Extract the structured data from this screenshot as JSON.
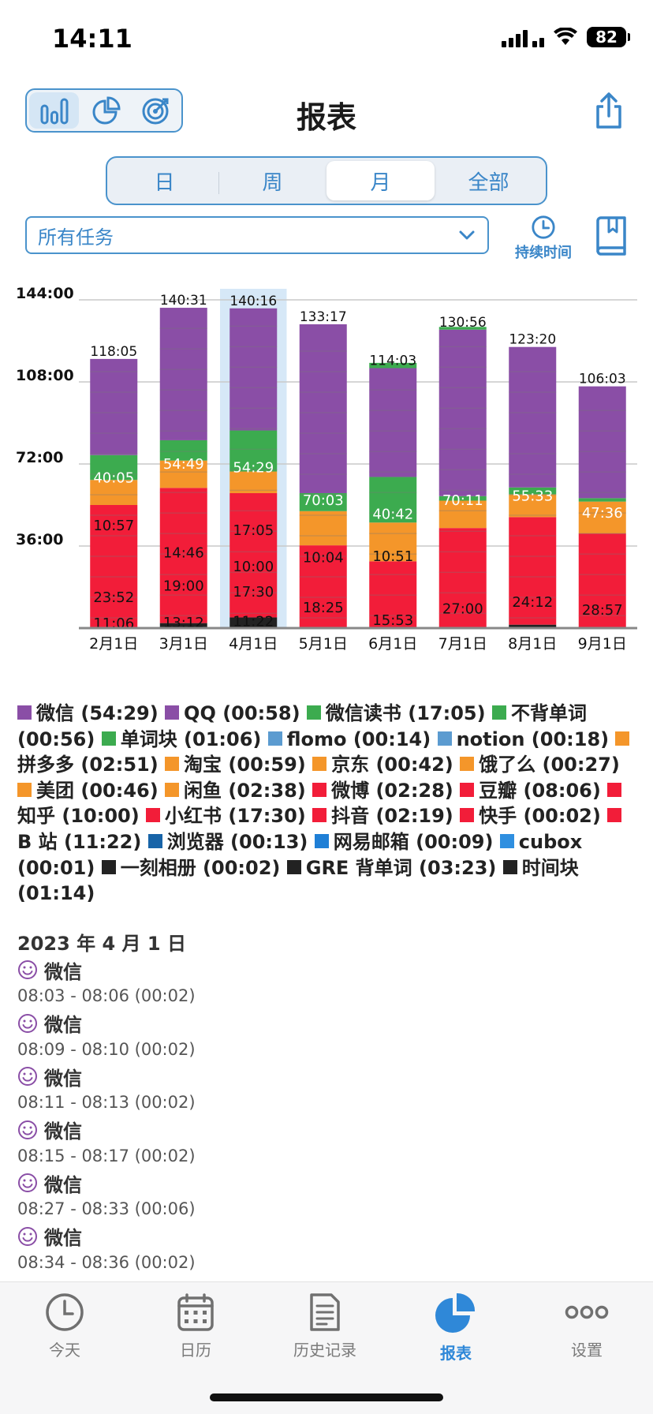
{
  "status_bar": {
    "time": "14:11",
    "battery": "82"
  },
  "header": {
    "title": "报表",
    "view_modes": [
      "bar-chart-icon",
      "pie-chart-icon",
      "target-icon"
    ],
    "active_view": 0
  },
  "period_tabs": {
    "items": [
      "日",
      "周",
      "月",
      "全部"
    ],
    "active": 2
  },
  "filter": {
    "selected": "所有任务",
    "duration_label": "持续时间"
  },
  "colors": {
    "accent": "#3a86c8",
    "purple": "#8a4ea6",
    "green": "#3cab4f",
    "orange": "#f4962a",
    "red": "#f21d39",
    "black": "#222222",
    "highlight": "#d6e8f7"
  },
  "chart_data": {
    "type": "bar",
    "stacked": true,
    "y_ticks": [
      "144:00",
      "108:00",
      "72:00",
      "36:00"
    ],
    "ylim_hours": [
      0,
      144
    ],
    "highlighted_category": "4月1日",
    "categories": [
      "2月1日",
      "3月1日",
      "4月1日",
      "5月1日",
      "6月1日",
      "7月1日",
      "8月1日",
      "9月1日"
    ],
    "totals": [
      "118:05",
      "140:31",
      "140:16",
      "133:17",
      "114:03",
      "130:56",
      "123:20",
      "106:03"
    ],
    "total_hours": [
      118.08,
      140.52,
      140.27,
      133.28,
      114.05,
      130.93,
      123.33,
      106.05
    ],
    "series": [
      {
        "name": "black",
        "color": "#222222",
        "hours": [
          0.3,
          2.2,
          4.7,
          0.3,
          0.5,
          0.4,
          1.5,
          0.3
        ]
      },
      {
        "name": "red",
        "color": "#f21d39",
        "hours": [
          53.7,
          59.3,
          54.5,
          36.0,
          28.8,
          43.5,
          47.2,
          41.2
        ]
      },
      {
        "name": "orange",
        "color": "#f4962a",
        "hours": [
          11.0,
          12.0,
          9.5,
          15.0,
          17.0,
          12.0,
          10.0,
          14.0
        ]
      },
      {
        "name": "green",
        "color": "#3cab4f",
        "hours": [
          10.9,
          8.9,
          18.0,
          7.9,
          20.0,
          2.0,
          3.0,
          1.5
        ]
      },
      {
        "name": "purple",
        "color": "#8a4ea6",
        "hours": [
          42.18,
          58.12,
          53.57,
          74.08,
          47.75,
          73.03,
          61.63,
          49.05
        ]
      },
      {
        "name": "top-green",
        "color": "#3cab4f",
        "hours": [
          0,
          0,
          0,
          0,
          2.3,
          1.2,
          0,
          0
        ]
      }
    ],
    "segment_labels": [
      [
        "11:06",
        "23:52",
        "10:57",
        "40:05"
      ],
      [
        "13:12",
        "19:00",
        "14:46",
        "54:49"
      ],
      [
        "11:22",
        "17:30",
        "10:00",
        "17:05",
        "54:29"
      ],
      [
        "18:25",
        "10:04",
        "70:03"
      ],
      [
        "15:53",
        "10:51",
        "40:42"
      ],
      [
        "27:00",
        "70:11"
      ],
      [
        "24:12",
        "55:33"
      ],
      [
        "28:57",
        "47:36"
      ]
    ],
    "segment_label_hours": [
      [
        2.0,
        13.5,
        45.0,
        66.0
      ],
      [
        2.5,
        18.5,
        33.0,
        72.0
      ],
      [
        3.0,
        16.0,
        27.0,
        43.0,
        70.5
      ],
      [
        9.0,
        31.0,
        56.0
      ],
      [
        3.5,
        31.5,
        50.0
      ],
      [
        8.5,
        56.0
      ],
      [
        11.5,
        58.0
      ],
      [
        8.0,
        50.5
      ]
    ],
    "segment_label_dark": [
      [
        true,
        true,
        true,
        false
      ],
      [
        true,
        true,
        true,
        false
      ],
      [
        true,
        true,
        true,
        true,
        false
      ],
      [
        true,
        true,
        false
      ],
      [
        true,
        true,
        false
      ],
      [
        true,
        false
      ],
      [
        true,
        false
      ],
      [
        true,
        false
      ]
    ]
  },
  "legend": [
    {
      "color": "#8a4ea6",
      "label": "微信 (54:29)"
    },
    {
      "color": "#8a4ea6",
      "label": "QQ (00:58)"
    },
    {
      "color": "#3cab4f",
      "label": "微信读书 (17:05)"
    },
    {
      "color": "#3cab4f",
      "label": "不背单词 (00:56)"
    },
    {
      "color": "#3cab4f",
      "label": "单词块 (01:06)"
    },
    {
      "color": "#5b9bd0",
      "label": "flomo (00:14)"
    },
    {
      "color": "#5b9bd0",
      "label": "notion (00:18)"
    },
    {
      "color": "#f4962a",
      "label": "拼多多 (02:51)"
    },
    {
      "color": "#f4962a",
      "label": "淘宝 (00:59)"
    },
    {
      "color": "#f4962a",
      "label": "京东 (00:42)"
    },
    {
      "color": "#f4962a",
      "label": "饿了么 (00:27)"
    },
    {
      "color": "#f4962a",
      "label": "美团 (00:46)"
    },
    {
      "color": "#f4962a",
      "label": "闲鱼 (02:38)"
    },
    {
      "color": "#f21d39",
      "label": "微博 (02:28)"
    },
    {
      "color": "#f21d39",
      "label": "豆瓣 (08:06)"
    },
    {
      "color": "#f21d39",
      "label": "知乎 (10:00)"
    },
    {
      "color": "#f21d39",
      "label": "小红书 (17:30)"
    },
    {
      "color": "#f21d39",
      "label": "抖音 (02:19)"
    },
    {
      "color": "#f21d39",
      "label": "快手 (00:02)"
    },
    {
      "color": "#f21d39",
      "label": "B 站 (11:22)"
    },
    {
      "color": "#1864a8",
      "label": "浏览器 (00:13)"
    },
    {
      "color": "#1f7fd6",
      "label": "网易邮箱 (00:09)"
    },
    {
      "color": "#2f8fe0",
      "label": "cubox (00:01)"
    },
    {
      "color": "#222222",
      "label": "一刻相册 (00:02)"
    },
    {
      "color": "#222222",
      "label": "GRE 背单词 (03:23)"
    },
    {
      "color": "#222222",
      "label": "时间块 (01:14)"
    }
  ],
  "records": {
    "date": "2023 年 4 月 1 日",
    "items": [
      {
        "title": "微信",
        "time": "08:03 - 08:06 (00:02)"
      },
      {
        "title": "微信",
        "time": "08:09 - 08:10 (00:02)"
      },
      {
        "title": "微信",
        "time": "08:11 - 08:13 (00:02)"
      },
      {
        "title": "微信",
        "time": "08:15 - 08:17 (00:02)"
      },
      {
        "title": "微信",
        "time": "08:27 - 08:33 (00:06)"
      },
      {
        "title": "微信",
        "time": "08:34 - 08:36 (00:02)"
      }
    ]
  },
  "tab_bar": {
    "items": [
      {
        "label": "今天",
        "icon": "clock-icon"
      },
      {
        "label": "日历",
        "icon": "calendar-icon"
      },
      {
        "label": "历史记录",
        "icon": "document-icon"
      },
      {
        "label": "报表",
        "icon": "pie-chart-icon"
      },
      {
        "label": "设置",
        "icon": "more-icon"
      }
    ],
    "active": 3
  }
}
